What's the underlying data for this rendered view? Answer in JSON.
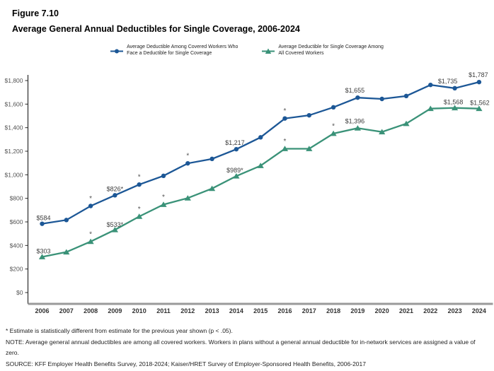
{
  "figure_label": "Figure 7.10",
  "title": "Average General Annual Deductibles for Single Coverage, 2006-2024",
  "legend": {
    "items": [
      {
        "line1": "Average Deductible Among Covered Workers Who",
        "line2": "Face a Deductible for Single Coverage",
        "marker": "circle",
        "color": "#1c5796"
      },
      {
        "line1": "Average Deductible for Single Coverage Among",
        "line2": "All Covered Workers",
        "marker": "triangle",
        "color": "#3a9278"
      }
    ]
  },
  "footnotes": [
    "* Estimate is statistically different from estimate for the previous year shown (p < .05).",
    "NOTE: Average general annual deductibles are among all covered workers. Workers in plans without a general annual deductible for in-network services are assigned a value of zero.",
    "SOURCE: KFF Employer Health Benefits Survey, 2018-2024; Kaiser/HRET Survey of Employer-Sponsored Health Benefits, 2006-2017"
  ],
  "chart_data": {
    "type": "line",
    "title": "Average General Annual Deductibles for Single Coverage, 2006-2024",
    "xlabel": "",
    "ylabel": "",
    "grid": false,
    "legend_position": "top",
    "x": [
      2006,
      2007,
      2008,
      2009,
      2010,
      2011,
      2012,
      2013,
      2014,
      2015,
      2016,
      2017,
      2018,
      2019,
      2020,
      2021,
      2022,
      2023,
      2024
    ],
    "ylim": [
      0,
      1800
    ],
    "ytick_step": 200,
    "ytick_labels": [
      "$0",
      "$200",
      "$400",
      "$600",
      "$800",
      "$1,000",
      "$1,200",
      "$1,400",
      "$1,600",
      "$1,800"
    ],
    "series": [
      {
        "name": "Average Deductible Among Covered Workers Who Face a Deductible for Single Coverage",
        "color": "#1c5796",
        "marker": "circle",
        "values": [
          584,
          616,
          735,
          826,
          917,
          991,
          1097,
          1135,
          1217,
          1318,
          1478,
          1505,
          1573,
          1655,
          1644,
          1669,
          1763,
          1735,
          1787
        ],
        "star_years": [
          2008,
          2010,
          2012,
          2016
        ],
        "point_labels": [
          {
            "year": 2006,
            "text": "$584",
            "dx": 2,
            "dy": -5
          },
          {
            "year": 2009,
            "text": "$826*",
            "dx": 0,
            "dy": -6
          },
          {
            "year": 2014,
            "text": "$1,217",
            "dx": -2,
            "dy": -6
          },
          {
            "year": 2019,
            "text": "$1,655",
            "dx": -4,
            "dy": -7
          },
          {
            "year": 2023,
            "text": "$1,735",
            "dx": -10,
            "dy": -7
          },
          {
            "year": 2024,
            "text": "$1,787",
            "dx": -1,
            "dy": -7
          }
        ]
      },
      {
        "name": "Average Deductible for Single Coverage Among All Covered Workers",
        "color": "#3a9278",
        "marker": "triangle",
        "values": [
          303,
          344,
          433,
          533,
          646,
          747,
          802,
          883,
          989,
          1077,
          1221,
          1221,
          1350,
          1396,
          1364,
          1434,
          1562,
          1568,
          1562
        ],
        "star_years": [
          2008,
          2010,
          2011,
          2016,
          2018
        ],
        "point_labels": [
          {
            "year": 2006,
            "text": "$303",
            "dx": 2,
            "dy": -5
          },
          {
            "year": 2009,
            "text": "$533*",
            "dx": 0,
            "dy": -4
          },
          {
            "year": 2014,
            "text": "$989*",
            "dx": -2,
            "dy": -5
          },
          {
            "year": 2019,
            "text": "$1,396",
            "dx": -4,
            "dy": -7
          },
          {
            "year": 2023,
            "text": "$1,568",
            "dx": -2,
            "dy": -5
          },
          {
            "year": 2024,
            "text": "$1,562",
            "dx": 1,
            "dy": -5
          }
        ]
      }
    ]
  }
}
